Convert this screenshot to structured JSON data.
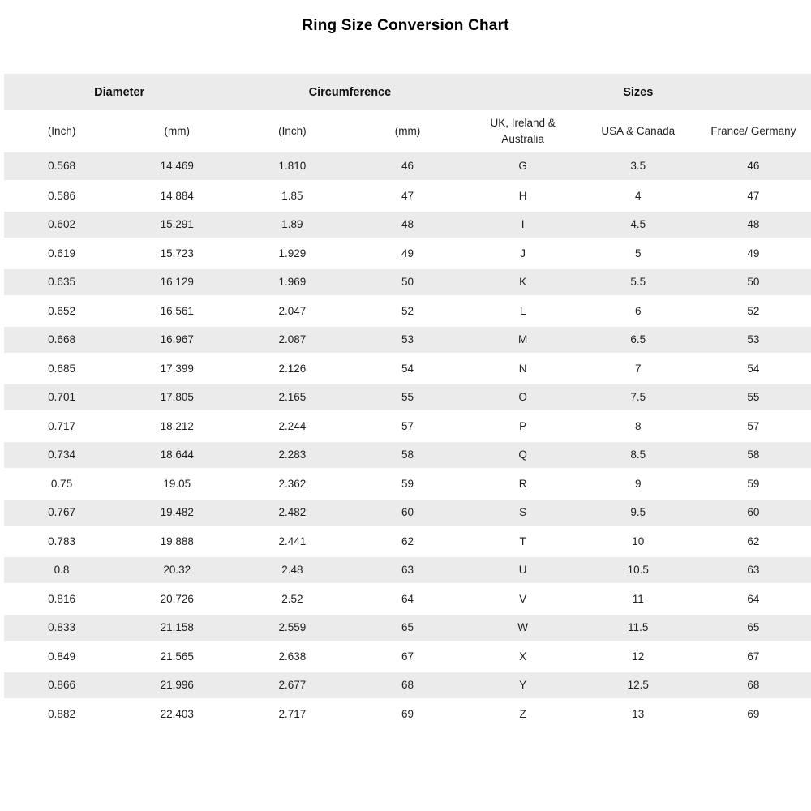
{
  "page": {
    "title": "Ring Size Conversion Chart"
  },
  "chart_data": {
    "type": "table",
    "title": "Ring Size Conversion Chart",
    "group_headers": [
      {
        "label": "Diameter",
        "colspan": 2
      },
      {
        "label": "Circumference",
        "colspan": 2
      },
      {
        "label": "Sizes",
        "colspan": 3
      }
    ],
    "columns": [
      "(Inch)",
      "(mm)",
      "(Inch)",
      "(mm)",
      "UK, Ireland & Australia",
      "USA & Canada",
      "France/ Germany"
    ],
    "rows": [
      [
        "0.568",
        "14.469",
        "1.810",
        "46",
        "G",
        "3.5",
        "46"
      ],
      [
        "0.586",
        "14.884",
        "1.85",
        "47",
        "H",
        "4",
        "47"
      ],
      [
        "0.602",
        "15.291",
        "1.89",
        "48",
        "I",
        "4.5",
        "48"
      ],
      [
        "0.619",
        "15.723",
        "1.929",
        "49",
        "J",
        "5",
        "49"
      ],
      [
        "0.635",
        "16.129",
        "1.969",
        "50",
        "K",
        "5.5",
        "50"
      ],
      [
        "0.652",
        "16.561",
        "2.047",
        "52",
        "L",
        "6",
        "52"
      ],
      [
        "0.668",
        "16.967",
        "2.087",
        "53",
        "M",
        "6.5",
        "53"
      ],
      [
        "0.685",
        "17.399",
        "2.126",
        "54",
        "N",
        "7",
        "54"
      ],
      [
        "0.701",
        "17.805",
        "2.165",
        "55",
        "O",
        "7.5",
        "55"
      ],
      [
        "0.717",
        "18.212",
        "2.244",
        "57",
        "P",
        "8",
        "57"
      ],
      [
        "0.734",
        "18.644",
        "2.283",
        "58",
        "Q",
        "8.5",
        "58"
      ],
      [
        "0.75",
        "19.05",
        "2.362",
        "59",
        "R",
        "9",
        "59"
      ],
      [
        "0.767",
        "19.482",
        "2.482",
        "60",
        "S",
        "9.5",
        "60"
      ],
      [
        "0.783",
        "19.888",
        "2.441",
        "62",
        "T",
        "10",
        "62"
      ],
      [
        "0.8",
        "20.32",
        "2.48",
        "63",
        "U",
        "10.5",
        "63"
      ],
      [
        "0.816",
        "20.726",
        "2.52",
        "64",
        "V",
        "11",
        "64"
      ],
      [
        "0.833",
        "21.158",
        "2.559",
        "65",
        "W",
        "11.5",
        "65"
      ],
      [
        "0.849",
        "21.565",
        "2.638",
        "67",
        "X",
        "12",
        "67"
      ],
      [
        "0.866",
        "21.996",
        "2.677",
        "68",
        "Y",
        "12.5",
        "68"
      ],
      [
        "0.882",
        "22.403",
        "2.717",
        "69",
        "Z",
        "13",
        "69"
      ]
    ],
    "layout": {
      "striped_rows": "odd",
      "stripe_color": "#ebebeb",
      "header_band_color": "#ebebeb",
      "grid": "off"
    }
  },
  "colors": {
    "stripe": "#ebebeb",
    "text": "#1f1f1f",
    "title": "#000000",
    "background": "#ffffff"
  }
}
